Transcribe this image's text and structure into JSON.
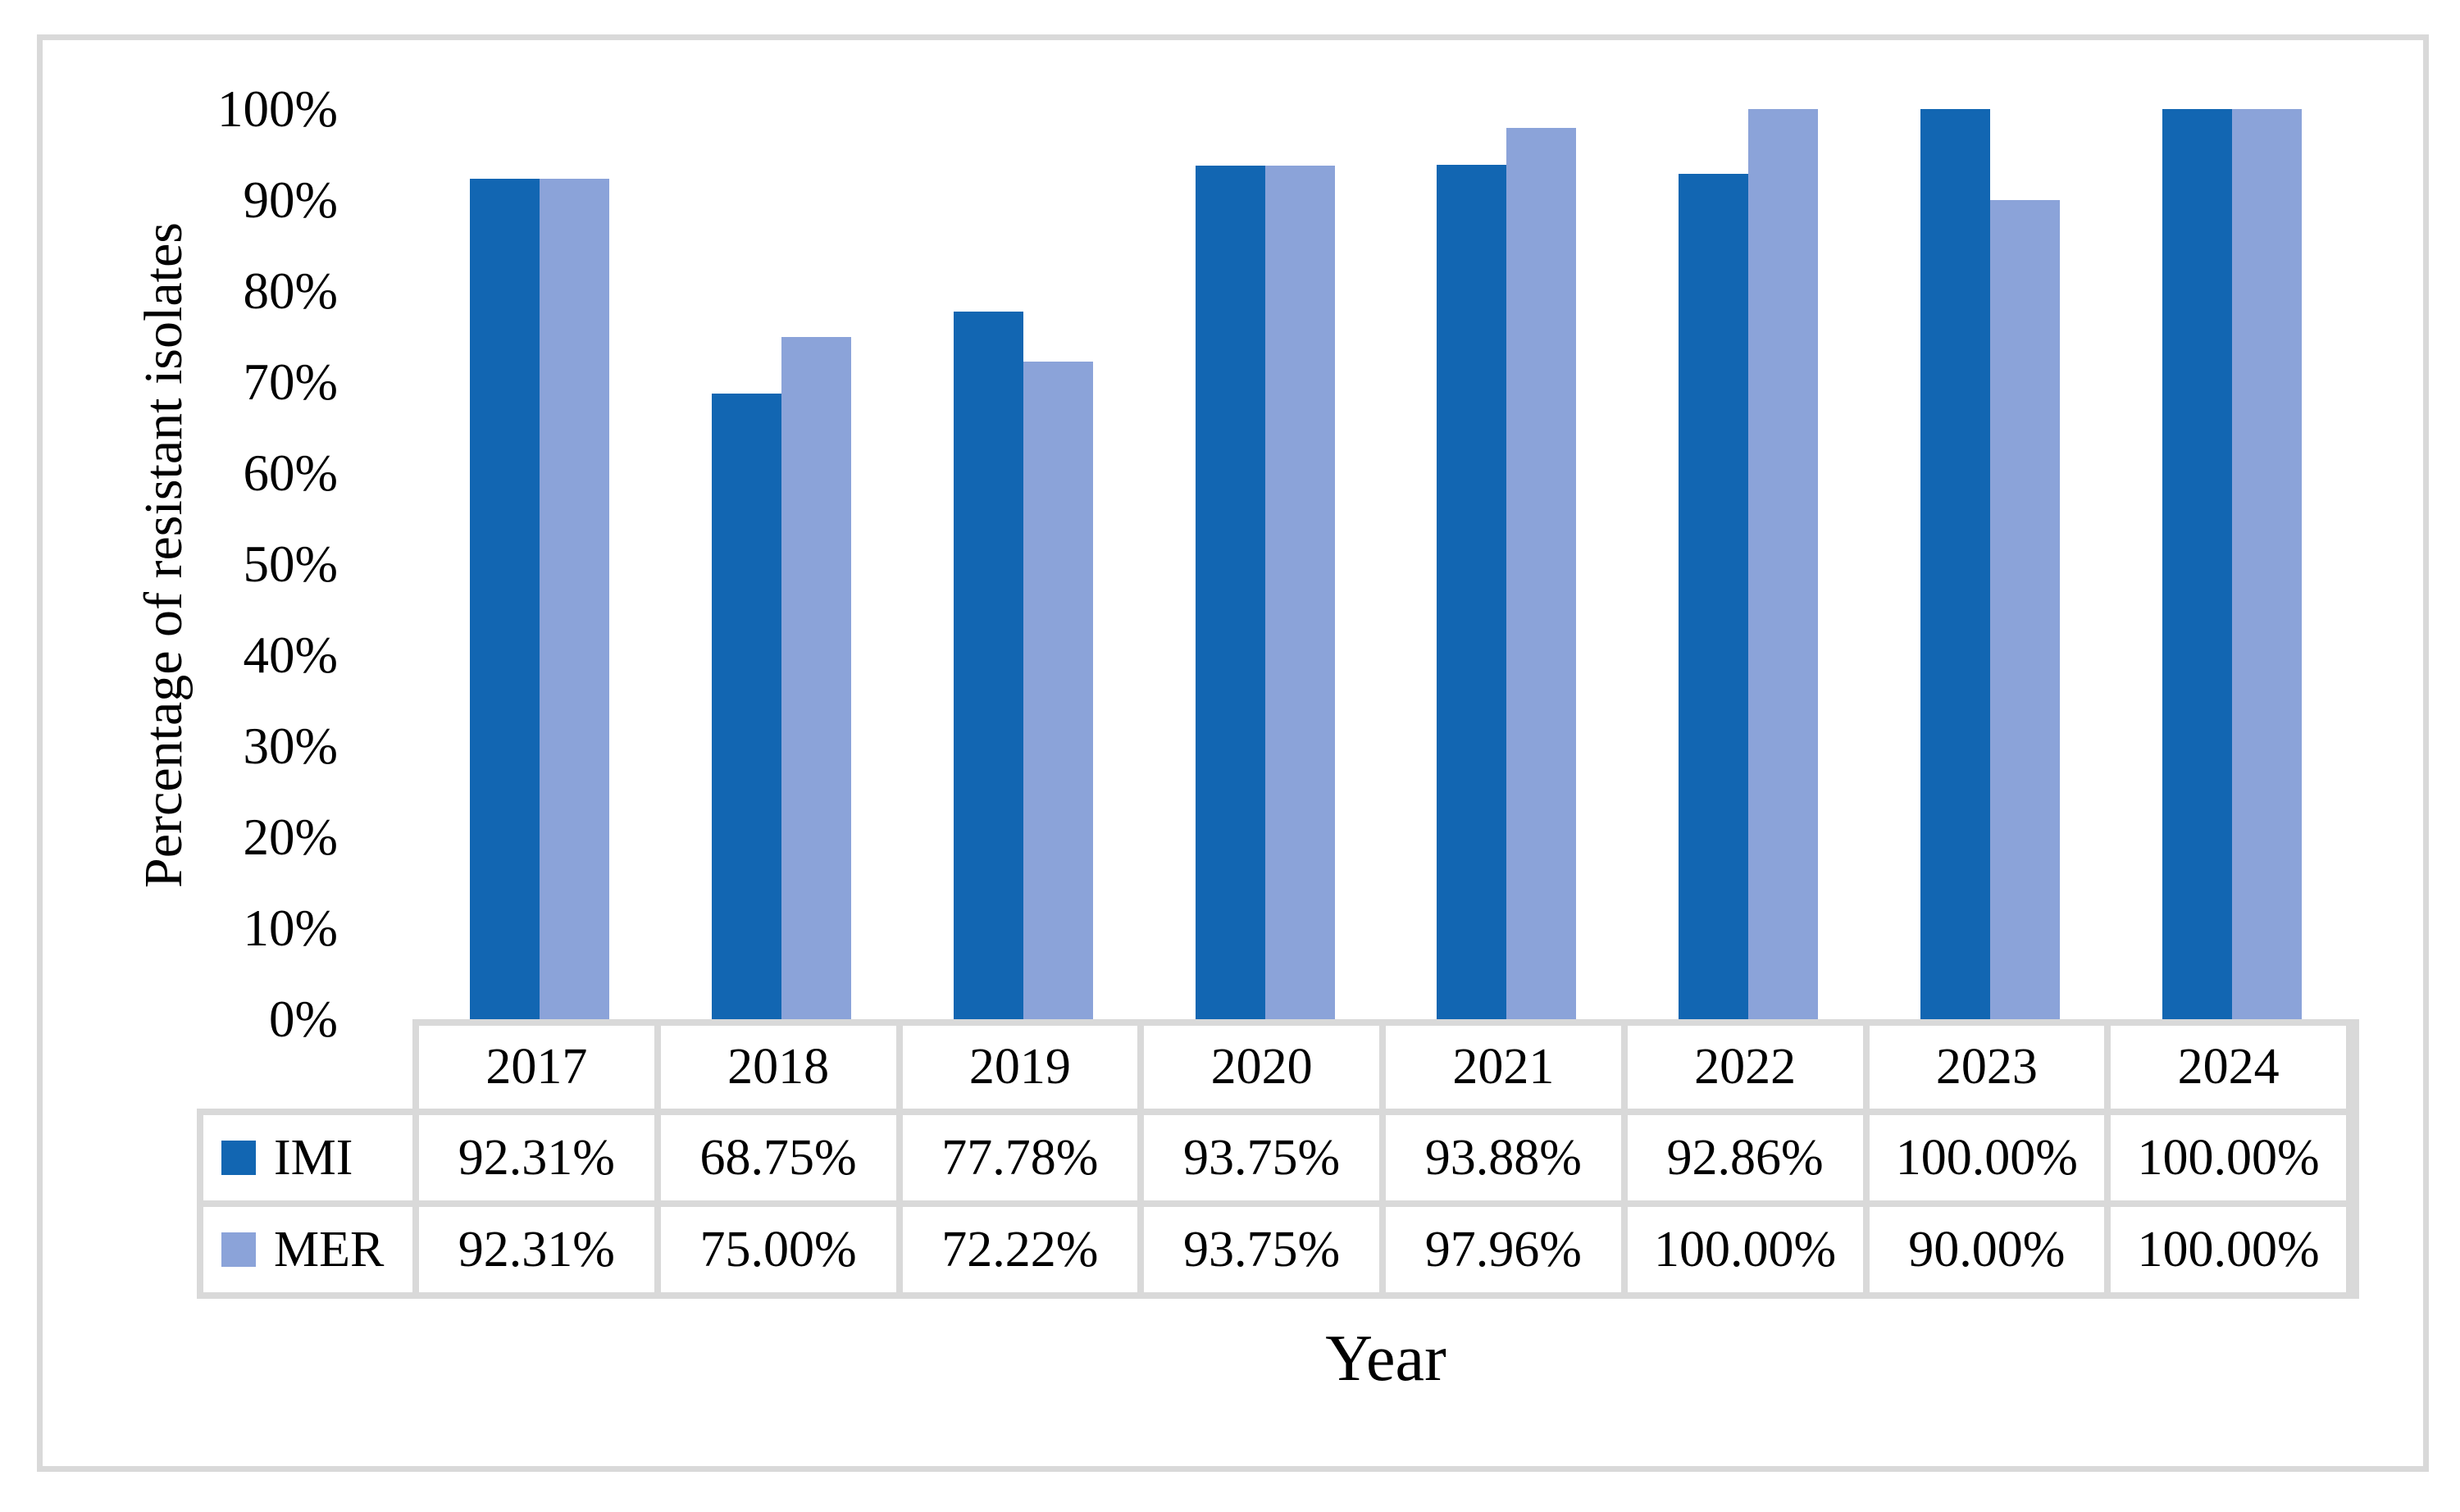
{
  "figure": {
    "background": "#FFFFFF",
    "border_color": "#D9D9D9",
    "table_line_color": "#D9D9D9"
  },
  "chart_data": {
    "type": "bar",
    "title": "",
    "xlabel": "Year",
    "ylabel": "Percentage of resistant isolates",
    "categories": [
      "2017",
      "2018",
      "2019",
      "2020",
      "2021",
      "2022",
      "2023",
      "2024"
    ],
    "series": [
      {
        "name": "IMI",
        "color": "#1266B2",
        "values": [
          92.31,
          68.75,
          77.78,
          93.75,
          93.88,
          92.86,
          100.0,
          100.0
        ],
        "labels": [
          "92.31%",
          "68.75%",
          "77.78%",
          "93.75%",
          "93.88%",
          "92.86%",
          "100.00%",
          "100.00%"
        ]
      },
      {
        "name": "MER",
        "color": "#8BA3D9",
        "values": [
          92.31,
          75.0,
          72.22,
          93.75,
          97.96,
          100.0,
          90.0,
          100.0
        ],
        "labels": [
          "92.31%",
          "75.00%",
          "72.22%",
          "93.75%",
          "97.96%",
          "100.00%",
          "90.00%",
          "100.00%"
        ]
      }
    ],
    "y_ticks": [
      "0%",
      "10%",
      "20%",
      "30%",
      "40%",
      "50%",
      "60%",
      "70%",
      "80%",
      "90%",
      "100%"
    ],
    "ylim": [
      0,
      100
    ],
    "grid": false,
    "legend_position": "table-left"
  }
}
